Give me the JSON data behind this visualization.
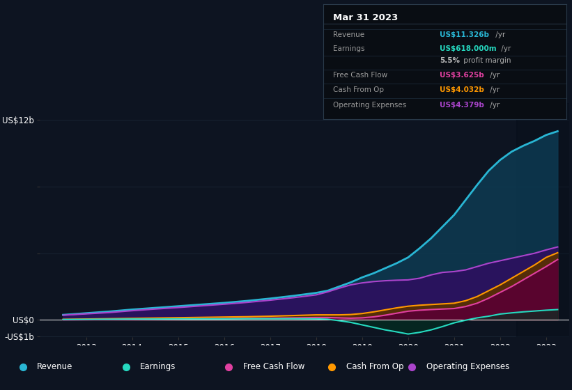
{
  "bg_color": "#0d1421",
  "grid_color": "#1a2535",
  "years": [
    2012.5,
    2013.0,
    2013.5,
    2014.0,
    2014.5,
    2015.0,
    2015.5,
    2016.0,
    2016.5,
    2017.0,
    2017.5,
    2018.0,
    2018.25,
    2018.5,
    2018.75,
    2019.0,
    2019.25,
    2019.5,
    2019.75,
    2020.0,
    2020.25,
    2020.5,
    2020.75,
    2021.0,
    2021.25,
    2021.5,
    2021.75,
    2022.0,
    2022.25,
    2022.5,
    2022.75,
    2023.0,
    2023.25
  ],
  "revenue": [
    0.3,
    0.4,
    0.5,
    0.62,
    0.72,
    0.82,
    0.92,
    1.02,
    1.14,
    1.28,
    1.44,
    1.62,
    1.75,
    2.0,
    2.25,
    2.55,
    2.8,
    3.1,
    3.4,
    3.75,
    4.3,
    4.9,
    5.6,
    6.3,
    7.2,
    8.1,
    8.95,
    9.6,
    10.1,
    10.45,
    10.75,
    11.1,
    11.326
  ],
  "earnings": [
    0.02,
    0.03,
    0.04,
    0.05,
    0.05,
    0.06,
    0.06,
    0.06,
    0.07,
    0.07,
    0.07,
    0.06,
    0.04,
    -0.05,
    -0.15,
    -0.3,
    -0.45,
    -0.6,
    -0.72,
    -0.85,
    -0.75,
    -0.6,
    -0.4,
    -0.18,
    -0.02,
    0.12,
    0.22,
    0.35,
    0.42,
    0.48,
    0.53,
    0.58,
    0.618
  ],
  "free_cash_flow": [
    0.0,
    0.01,
    0.02,
    0.03,
    0.04,
    0.05,
    0.06,
    0.07,
    0.09,
    0.1,
    0.12,
    0.14,
    0.14,
    0.12,
    0.1,
    0.12,
    0.18,
    0.28,
    0.4,
    0.52,
    0.58,
    0.62,
    0.65,
    0.68,
    0.8,
    1.0,
    1.3,
    1.65,
    2.0,
    2.4,
    2.8,
    3.2,
    3.625
  ],
  "cash_from_op": [
    0.03,
    0.05,
    0.07,
    0.09,
    0.11,
    0.13,
    0.15,
    0.17,
    0.19,
    0.22,
    0.26,
    0.3,
    0.3,
    0.3,
    0.32,
    0.38,
    0.48,
    0.6,
    0.72,
    0.82,
    0.88,
    0.92,
    0.96,
    1.0,
    1.15,
    1.4,
    1.75,
    2.1,
    2.5,
    2.9,
    3.3,
    3.75,
    4.032
  ],
  "operating_expenses": [
    0.28,
    0.36,
    0.44,
    0.55,
    0.65,
    0.74,
    0.84,
    0.94,
    1.05,
    1.18,
    1.33,
    1.5,
    1.68,
    1.9,
    2.1,
    2.22,
    2.3,
    2.35,
    2.38,
    2.4,
    2.5,
    2.7,
    2.85,
    2.9,
    3.0,
    3.2,
    3.4,
    3.55,
    3.7,
    3.85,
    4.0,
    4.2,
    4.379
  ],
  "revenue_color": "#29b6d4",
  "earnings_color": "#26d9c0",
  "fcf_color": "#e040a0",
  "cashop_color": "#ff9800",
  "opex_color": "#aa44cc",
  "ylim_min": -1.05,
  "ylim_max": 13.0,
  "xlim_min": 2012.0,
  "xlim_max": 2023.5,
  "yticks": [
    -1.0,
    0.0,
    4.0,
    8.0,
    12.0
  ],
  "ytick_labels": [
    "-US$1b",
    "US$0",
    "",
    "",
    "US$12b"
  ],
  "xtick_years": [
    2013,
    2014,
    2015,
    2016,
    2017,
    2018,
    2019,
    2020,
    2021,
    2022,
    2023
  ],
  "tooltip_date": "Mar 31 2023",
  "tooltip_rows": [
    {
      "label": "Revenue",
      "value": "US$11.326b",
      "suffix": " /yr",
      "color": "#29b6d4"
    },
    {
      "label": "Earnings",
      "value": "US$618.000m",
      "suffix": " /yr",
      "color": "#26d9c0"
    },
    {
      "label": "",
      "value": "5.5%",
      "suffix": " profit margin",
      "color": "#bbbbbb",
      "bold_pct": true
    },
    {
      "label": "Free Cash Flow",
      "value": "US$3.625b",
      "suffix": " /yr",
      "color": "#e040a0"
    },
    {
      "label": "Cash From Op",
      "value": "US$4.032b",
      "suffix": " /yr",
      "color": "#ff9800"
    },
    {
      "label": "Operating Expenses",
      "value": "US$4.379b",
      "suffix": " /yr",
      "color": "#aa44cc"
    }
  ],
  "legend_items": [
    {
      "label": "Revenue",
      "color": "#29b6d4"
    },
    {
      "label": "Earnings",
      "color": "#26d9c0"
    },
    {
      "label": "Free Cash Flow",
      "color": "#e040a0"
    },
    {
      "label": "Cash From Op",
      "color": "#ff9800"
    },
    {
      "label": "Operating Expenses",
      "color": "#aa44cc"
    }
  ]
}
